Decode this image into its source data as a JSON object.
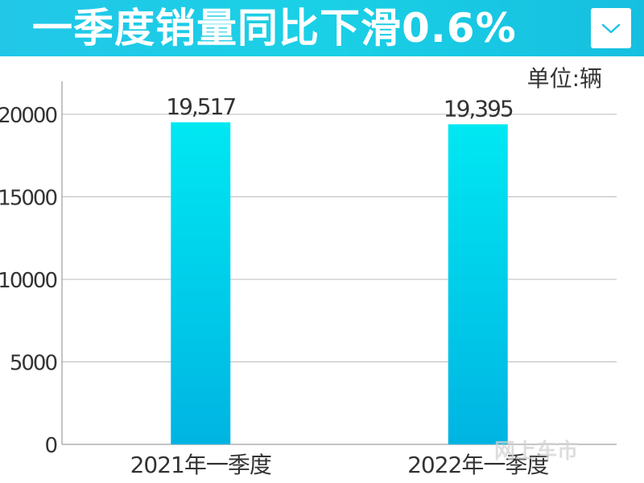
{
  "header": {
    "title": "一季度销量同比下滑0.6%",
    "dropdown_icon": "chevron-down-icon"
  },
  "unit_label": "单位:辆",
  "watermark": "网上车市",
  "colors": {
    "header_bg": "#1ccbe6",
    "bar_top": "#00e8f2",
    "bar_bottom": "#00b4e2",
    "grid": "#bbbbbb",
    "text": "#333333"
  },
  "chart_data": {
    "type": "bar",
    "categories": [
      "2021年一季度",
      "2022年一季度"
    ],
    "values": [
      19517,
      19395
    ],
    "value_labels": [
      "19,517",
      "19,395"
    ],
    "ylim": [
      0,
      22000
    ],
    "yticks": [
      0,
      5000,
      10000,
      15000,
      20000
    ],
    "grid": true,
    "ylabel": "",
    "xlabel": ""
  }
}
